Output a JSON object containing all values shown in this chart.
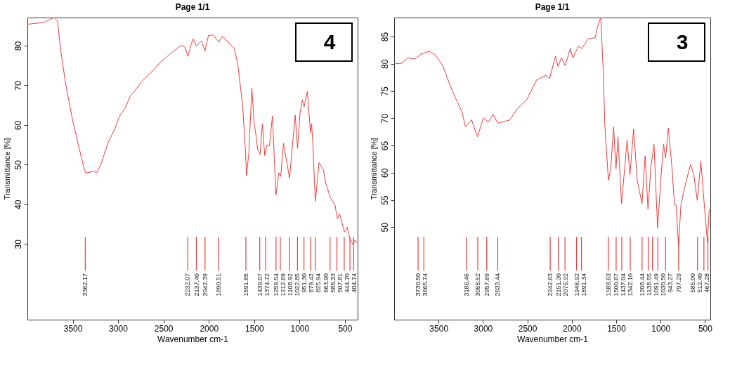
{
  "chart_data": [
    {
      "type": "line",
      "title": "Page 1/1",
      "xlabel": "Wavenumber cm-1",
      "ylabel": "Transmittance [%]",
      "color": "#f03c3c",
      "xlim": [
        4000,
        360
      ],
      "ylim": [
        10.9,
        87.1
      ],
      "xticks": [
        3500,
        3000,
        2500,
        2000,
        1500,
        1000,
        500
      ],
      "yticks": [
        30,
        40,
        50,
        60,
        70,
        80
      ],
      "annotations": [
        "4"
      ],
      "x": [
        4000,
        3814,
        3776,
        3706,
        3668,
        3630,
        3578,
        3500,
        3435,
        3384,
        3358,
        3319,
        3268,
        3237,
        3190,
        3113,
        3035,
        2984,
        2919,
        2868,
        2803,
        2739,
        2648,
        2519,
        2468,
        2403,
        2300,
        2261,
        2230,
        2197,
        2171,
        2138,
        2081,
        2042,
        2004,
        1952,
        1888,
        1854,
        1810,
        1719,
        1681,
        1629,
        1595,
        1585,
        1559,
        1526,
        1500,
        1487,
        1461,
        1435,
        1410,
        1384,
        1358,
        1332,
        1299,
        1281,
        1260,
        1229,
        1208,
        1177,
        1139,
        1110,
        1079,
        1048,
        1022,
        996,
        970,
        950,
        914,
        880,
        867,
        854,
        826,
        785,
        738,
        712,
        661,
        609,
        584,
        558,
        506,
        475,
        442,
        409,
        390,
        364
      ],
      "values": [
        85.4,
        85.9,
        86.3,
        87.1,
        86.2,
        78.4,
        70.3,
        61,
        54.7,
        49.8,
        47.9,
        48,
        48.4,
        47.9,
        50.1,
        55.4,
        59.1,
        62.2,
        64.4,
        67.2,
        69,
        71,
        73,
        76.2,
        77.1,
        78.4,
        80.1,
        79.6,
        77.3,
        80.2,
        81.7,
        79.9,
        81.2,
        78.7,
        82.6,
        82.7,
        80.9,
        82.4,
        81.5,
        79.3,
        75.3,
        65.3,
        52.9,
        47.3,
        52.9,
        69.4,
        60.3,
        58.5,
        53.8,
        52.6,
        60.3,
        52.3,
        55,
        54.7,
        62.3,
        52.9,
        42.3,
        47.9,
        47,
        55.4,
        50.4,
        46.6,
        54.7,
        62.5,
        54.1,
        62.8,
        66.3,
        64.6,
        68.5,
        58.1,
        60.3,
        55.4,
        40.7,
        50.5,
        48.8,
        45.4,
        41.7,
        39.8,
        36.4,
        37.6,
        33,
        34.2,
        31.1,
        29.8,
        31,
        30.2
      ],
      "ref_lines": [
        {
          "axis": "x",
          "value": 3362.17,
          "label": "3362.17"
        },
        {
          "axis": "x",
          "value": 2232.07,
          "label": "2232.07"
        },
        {
          "axis": "x",
          "value": 2137.4,
          "label": "2137.40"
        },
        {
          "axis": "x",
          "value": 2042.39,
          "label": "2042.39"
        },
        {
          "axis": "x",
          "value": 1890.51,
          "label": "1890.51"
        },
        {
          "axis": "x",
          "value": 1591.65,
          "label": "1591.65"
        },
        {
          "axis": "x",
          "value": 1439.07,
          "label": "1439.07"
        },
        {
          "axis": "x",
          "value": 1374.72,
          "label": "1374.72"
        },
        {
          "axis": "x",
          "value": 1259.54,
          "label": "1259.54"
        },
        {
          "axis": "x",
          "value": 1212.69,
          "label": "1212.69"
        },
        {
          "axis": "x",
          "value": 1108.92,
          "label": "1108.92"
        },
        {
          "axis": "x",
          "value": 1022.85,
          "label": "1022.85"
        },
        {
          "axis": "x",
          "value": 951.3,
          "label": "951.30"
        },
        {
          "axis": "x",
          "value": 879.42,
          "label": "879.42"
        },
        {
          "axis": "x",
          "value": 825.94,
          "label": "825.94"
        },
        {
          "axis": "x",
          "value": 663.9,
          "label": "663.90"
        },
        {
          "axis": "x",
          "value": 588.33,
          "label": "588.33"
        },
        {
          "axis": "x",
          "value": 507.81,
          "label": "507.81"
        },
        {
          "axis": "x",
          "value": 444.7,
          "label": "444.70"
        },
        {
          "axis": "x",
          "value": 404.74,
          "label": "404.74"
        }
      ]
    },
    {
      "type": "line",
      "title": "Page 1/1",
      "xlabel": "Wavenumber cm-1",
      "ylabel": "Transmittance [%]",
      "color": "#f03c3c",
      "xlim": [
        4000,
        440
      ],
      "ylim": [
        33,
        88.5
      ],
      "xticks": [
        3500,
        3000,
        2500,
        2000,
        1500,
        1000,
        500
      ],
      "yticks": [
        50,
        55,
        60,
        65,
        70,
        75,
        80,
        85
      ],
      "annotations": [
        "3"
      ],
      "x": [
        4000,
        3914,
        3846,
        3765,
        3697,
        3603,
        3535,
        3454,
        3373,
        3319,
        3238,
        3197,
        3129,
        3062,
        2994,
        2940,
        2886,
        2832,
        2697,
        2616,
        2507,
        2399,
        2291,
        2251,
        2183,
        2156,
        2116,
        2075,
        2016,
        1988,
        1926,
        1885,
        1817,
        1736,
        1709,
        1674,
        1647,
        1628,
        1588,
        1561,
        1529,
        1502,
        1480,
        1440,
        1377,
        1345,
        1304,
        1263,
        1209,
        1174,
        1142,
        1109,
        1074,
        1034,
        993,
        966,
        944,
        912,
        871,
        844,
        825,
        798,
        771,
        722,
        663,
        628,
        587,
        547,
        512,
        473,
        452
      ],
      "values": [
        80,
        80.1,
        81.1,
        80.9,
        81.8,
        82.3,
        81.6,
        79.7,
        76.2,
        74,
        71.3,
        68.4,
        69.7,
        66.6,
        70.1,
        69.3,
        70.7,
        69.1,
        69.7,
        71.7,
        73.4,
        77,
        77.9,
        77.3,
        81.4,
        79.5,
        81.1,
        79.7,
        82.8,
        81.1,
        83.2,
        82.8,
        84.6,
        84.8,
        86.9,
        88.5,
        79.1,
        68.9,
        58.6,
        60.7,
        68.4,
        60.7,
        66.6,
        54.3,
        66,
        59.6,
        68,
        58.6,
        54.3,
        63.1,
        53.3,
        61.1,
        65.2,
        49.8,
        59.8,
        65.2,
        62.7,
        68.2,
        60.7,
        54.1,
        54,
        46.5,
        54.1,
        57.8,
        61.5,
        59.8,
        54.9,
        62.1,
        54.9,
        47.3,
        53.3
      ],
      "ref_lines": [
        {
          "axis": "x",
          "value": 3730.5,
          "label": "3730.50"
        },
        {
          "axis": "x",
          "value": 3665.74,
          "label": "3665.74"
        },
        {
          "axis": "x",
          "value": 3186.46,
          "label": "3186.46"
        },
        {
          "axis": "x",
          "value": 3058.52,
          "label": "3058.52"
        },
        {
          "axis": "x",
          "value": 2957.69,
          "label": "2957.69"
        },
        {
          "axis": "x",
          "value": 2833.44,
          "label": "2833.44"
        },
        {
          "axis": "x",
          "value": 2242.63,
          "label": "2242.63"
        },
        {
          "axis": "x",
          "value": 2151.3,
          "label": "2151.30"
        },
        {
          "axis": "x",
          "value": 2075.92,
          "label": "2075.92"
        },
        {
          "axis": "x",
          "value": 1946.92,
          "label": "1946.92"
        },
        {
          "axis": "x",
          "value": 1891.34,
          "label": "1891.34"
        },
        {
          "axis": "x",
          "value": 1588.63,
          "label": "1588.63"
        },
        {
          "axis": "x",
          "value": 1500.67,
          "label": "1500.67"
        },
        {
          "axis": "x",
          "value": 1437.04,
          "label": "1437.04"
        },
        {
          "axis": "x",
          "value": 1342.1,
          "label": "1342.10"
        },
        {
          "axis": "x",
          "value": 1208.44,
          "label": "1208.44"
        },
        {
          "axis": "x",
          "value": 1138.55,
          "label": "1138.55"
        },
        {
          "axis": "x",
          "value": 1091.49,
          "label": "1091.49"
        },
        {
          "axis": "x",
          "value": 1030.5,
          "label": "1030.50"
        },
        {
          "axis": "x",
          "value": 943.27,
          "label": "943.27"
        },
        {
          "axis": "x",
          "value": 797.29,
          "label": "797.29"
        },
        {
          "axis": "x",
          "value": 585.0,
          "label": "585.00"
        },
        {
          "axis": "x",
          "value": 512.4,
          "label": "512.40"
        },
        {
          "axis": "x",
          "value": 467.28,
          "label": "467.28"
        }
      ]
    }
  ]
}
